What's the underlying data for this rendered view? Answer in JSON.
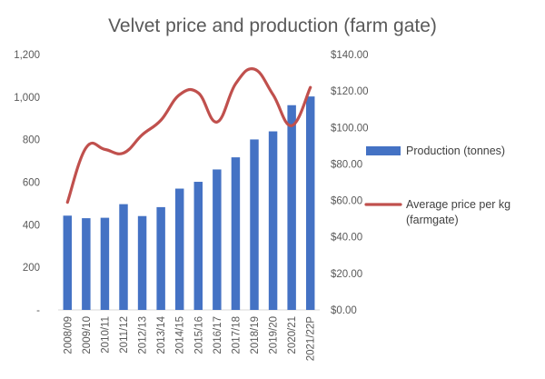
{
  "chart_data": {
    "type": "bar",
    "title": "Velvet price and production (farm gate)",
    "categories": [
      "2008/09",
      "2009/10",
      "2010/11",
      "2011/12",
      "2012/13",
      "2013/14",
      "2014/15",
      "2015/16",
      "2016/17",
      "2017/18",
      "2018/19",
      "2019/20",
      "2020/21",
      "2021/22P"
    ],
    "series": [
      {
        "name": "Production (tonnes)",
        "type": "bar",
        "axis": "left",
        "color": "#4472c4",
        "values": [
          443,
          431,
          433,
          497,
          441,
          483,
          570,
          602,
          660,
          717,
          801,
          839,
          962,
          1003
        ]
      },
      {
        "name": "Average price per kg (farmgate)",
        "type": "line",
        "axis": "right",
        "color": "#c0504d",
        "values": [
          59,
          89,
          88,
          86,
          96,
          104,
          118,
          119,
          103,
          124,
          132,
          118,
          101,
          122
        ]
      }
    ],
    "left_axis": {
      "ylim": [
        0,
        1200
      ],
      "ticks": [
        0,
        200,
        400,
        600,
        800,
        1000,
        1200
      ],
      "tick_labels": [
        "-",
        "200",
        "400",
        "600",
        "800",
        "1,000",
        "1,200"
      ]
    },
    "right_axis": {
      "ylim": [
        0,
        140
      ],
      "ticks": [
        0,
        20,
        40,
        60,
        80,
        100,
        120,
        140
      ],
      "tick_labels": [
        "$0.00",
        "$20.00",
        "$40.00",
        "$60.00",
        "$80.00",
        "$100.00",
        "$120.00",
        "$140.00"
      ]
    },
    "legend": {
      "position": "right",
      "entries": [
        "Production (tonnes)",
        "Average price per kg",
        "(farmgate)"
      ]
    },
    "grid": false
  }
}
